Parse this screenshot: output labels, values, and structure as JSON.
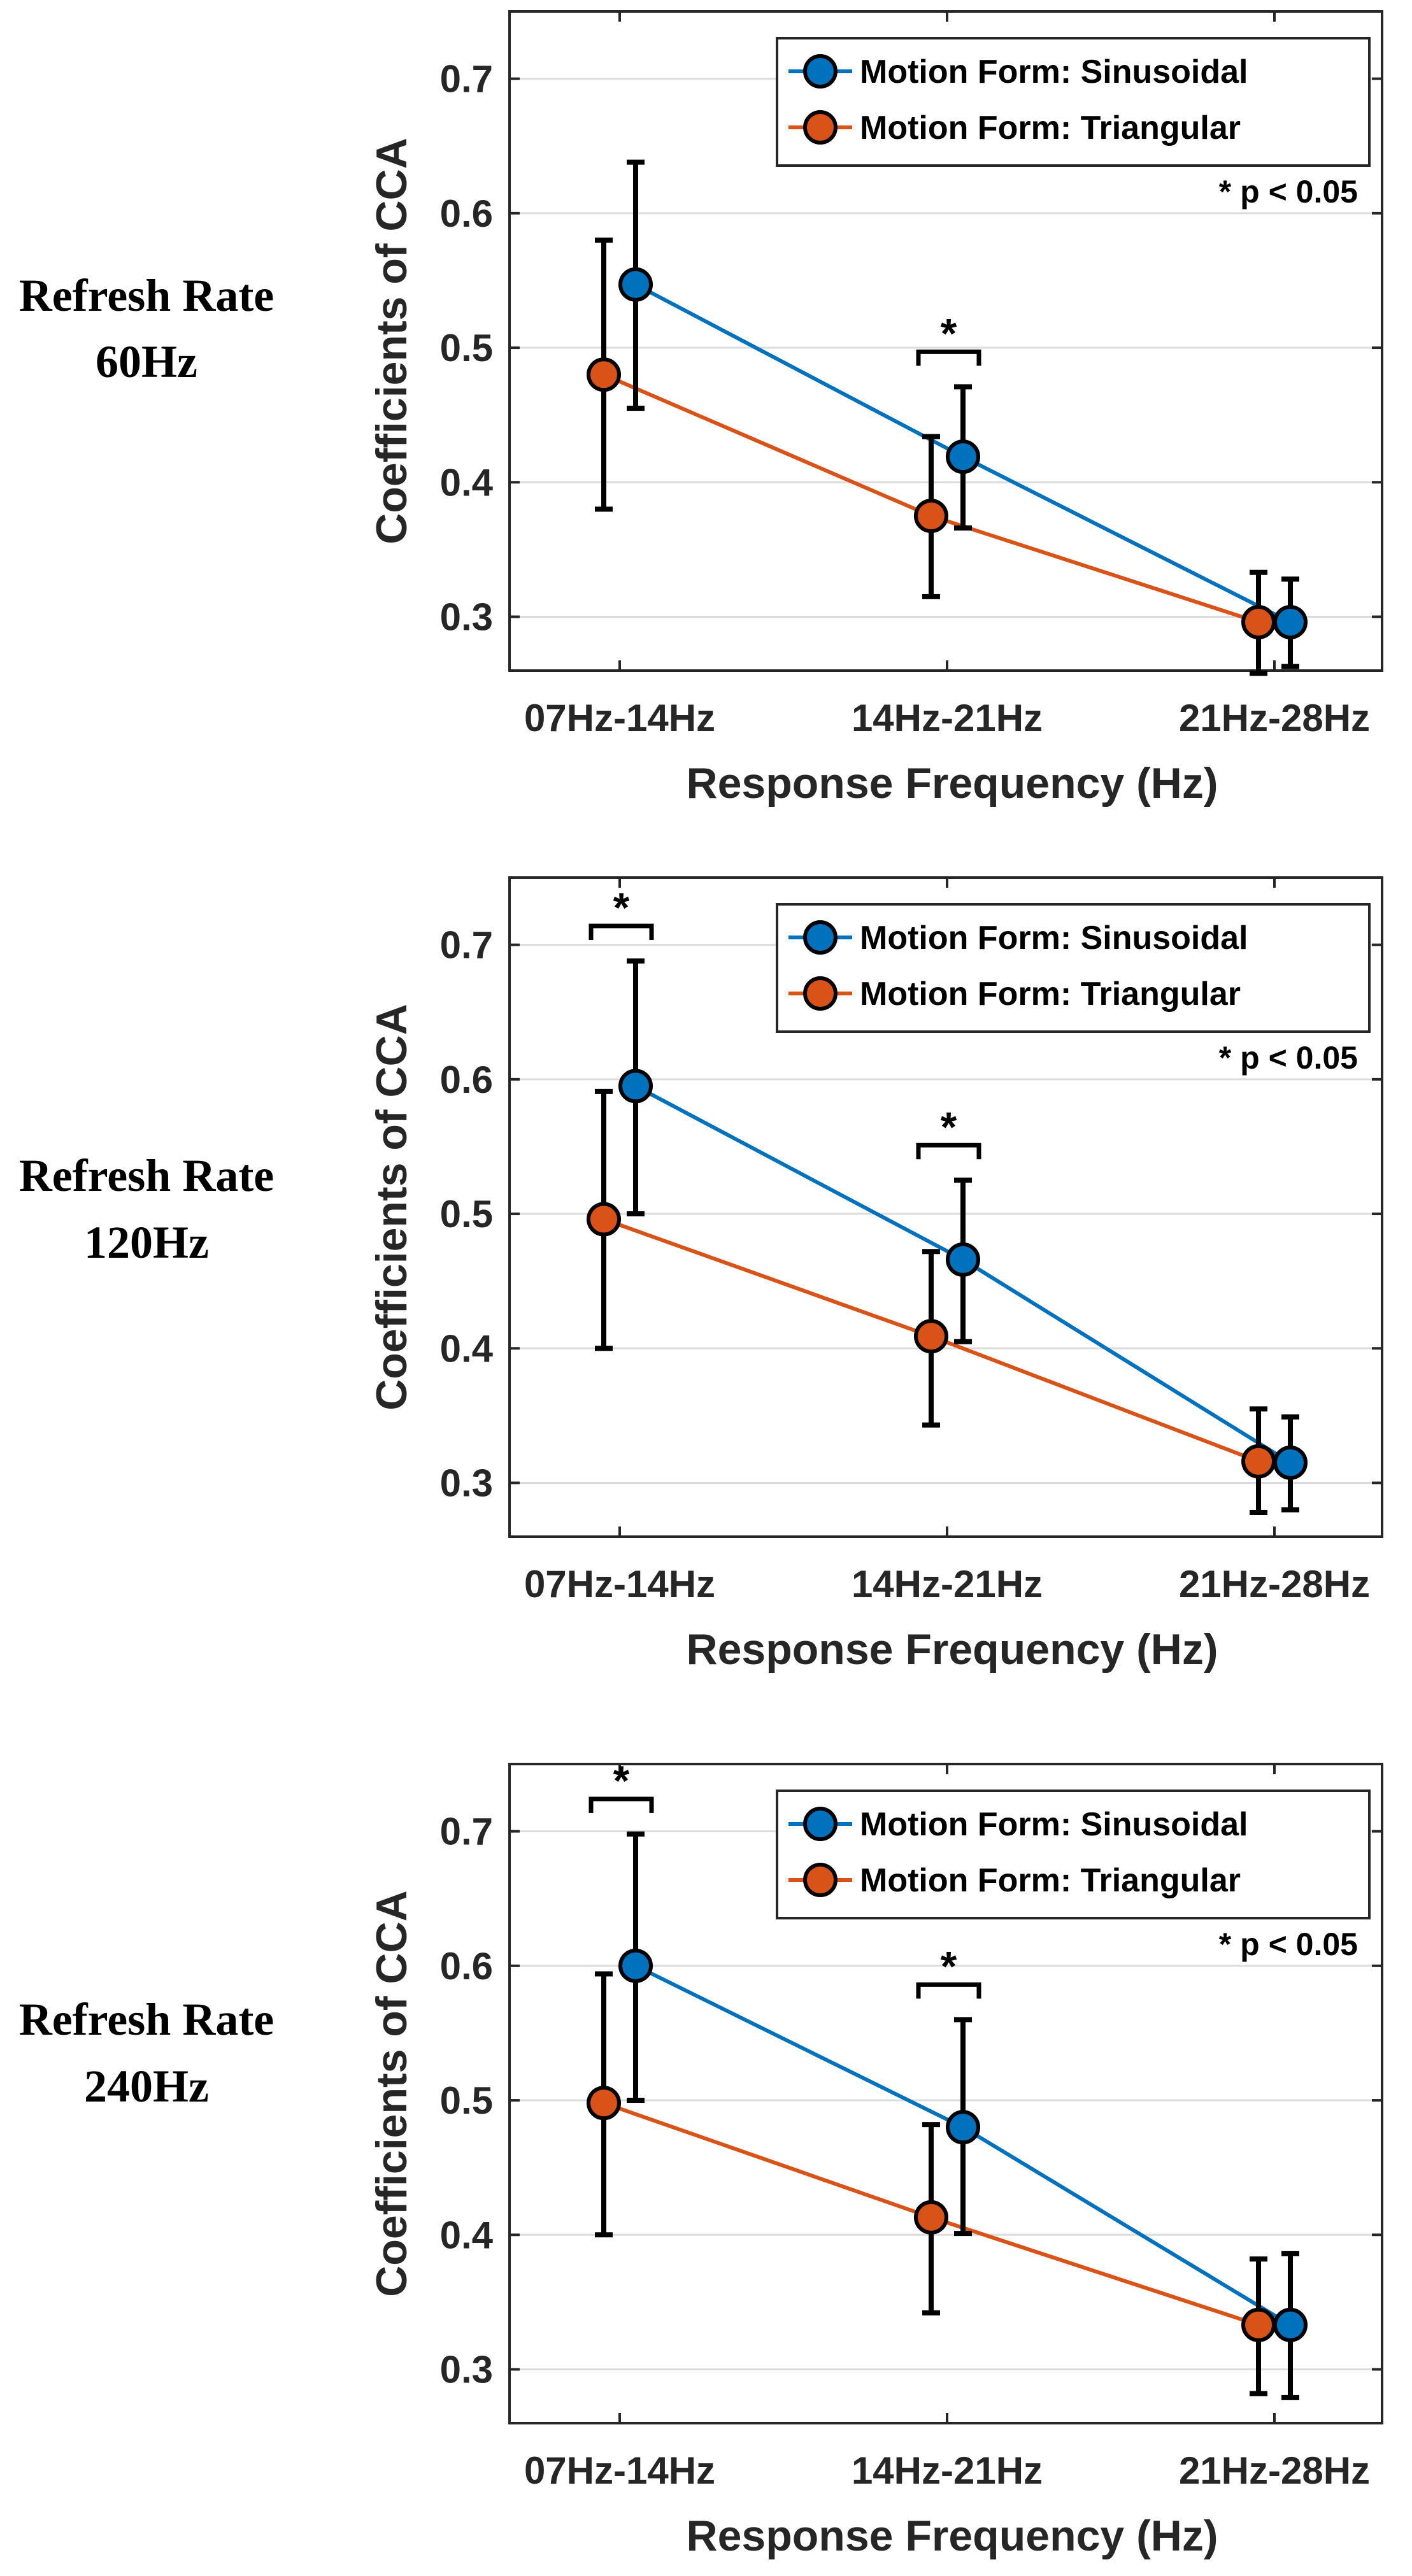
{
  "colors": {
    "sinusoidal": "#0072BD",
    "triangular": "#D95319",
    "axis": "#262626",
    "grid": "#dcdcdc",
    "error_bar": "#000000"
  },
  "chart_data": [
    {
      "type": "line",
      "row_label": [
        "Refresh Rate",
        "60Hz"
      ],
      "categories": [
        "07Hz-14Hz",
        "14Hz-21Hz",
        "21Hz-28Hz"
      ],
      "xlabel": "Response Frequency (Hz)",
      "ylabel": "Coefficients of CCA",
      "ylim": [
        0.26,
        0.75
      ],
      "yticks": [
        0.3,
        0.4,
        0.5,
        0.6,
        0.7
      ],
      "grid": true,
      "legend": "top-right",
      "note": "* p < 0.05",
      "series": [
        {
          "name": "Motion Form: Sinusoidal",
          "values": [
            0.547,
            0.419,
            0.296
          ],
          "err_low": [
            0.455,
            0.366,
            0.263
          ],
          "err_high": [
            0.638,
            0.471,
            0.328
          ]
        },
        {
          "name": "Motion Form: Triangular",
          "values": [
            0.48,
            0.375,
            0.296
          ],
          "err_low": [
            0.38,
            0.315,
            0.258
          ],
          "err_high": [
            0.58,
            0.434,
            0.333
          ]
        }
      ],
      "significance": [
        1
      ]
    },
    {
      "type": "line",
      "row_label": [
        "Refresh Rate",
        "120Hz"
      ],
      "categories": [
        "07Hz-14Hz",
        "14Hz-21Hz",
        "21Hz-28Hz"
      ],
      "xlabel": "Response Frequency (Hz)",
      "ylabel": "Coefficients of CCA",
      "ylim": [
        0.26,
        0.75
      ],
      "yticks": [
        0.3,
        0.4,
        0.5,
        0.6,
        0.7
      ],
      "grid": true,
      "legend": "top-right",
      "note": "* p < 0.05",
      "series": [
        {
          "name": "Motion Form: Sinusoidal",
          "values": [
            0.595,
            0.466,
            0.315
          ],
          "err_low": [
            0.5,
            0.405,
            0.28
          ],
          "err_high": [
            0.688,
            0.525,
            0.349
          ]
        },
        {
          "name": "Motion Form: Triangular",
          "values": [
            0.496,
            0.409,
            0.316
          ],
          "err_low": [
            0.4,
            0.343,
            0.278
          ],
          "err_high": [
            0.591,
            0.472,
            0.355
          ]
        }
      ],
      "significance": [
        0,
        1
      ]
    },
    {
      "type": "line",
      "row_label": [
        "Refresh Rate",
        "240Hz"
      ],
      "categories": [
        "07Hz-14Hz",
        "14Hz-21Hz",
        "21Hz-28Hz"
      ],
      "xlabel": "Response Frequency (Hz)",
      "ylabel": "Coefficients of CCA",
      "ylim": [
        0.26,
        0.75
      ],
      "yticks": [
        0.3,
        0.4,
        0.5,
        0.6,
        0.7
      ],
      "grid": true,
      "legend": "top-right",
      "note": "* p < 0.05",
      "series": [
        {
          "name": "Motion Form: Sinusoidal",
          "values": [
            0.6,
            0.48,
            0.333
          ],
          "err_low": [
            0.5,
            0.401,
            0.279
          ],
          "err_high": [
            0.698,
            0.56,
            0.386
          ]
        },
        {
          "name": "Motion Form: Triangular",
          "values": [
            0.498,
            0.413,
            0.333
          ],
          "err_low": [
            0.4,
            0.342,
            0.282
          ],
          "err_high": [
            0.594,
            0.482,
            0.382
          ]
        }
      ],
      "significance": [
        0,
        1
      ]
    }
  ]
}
